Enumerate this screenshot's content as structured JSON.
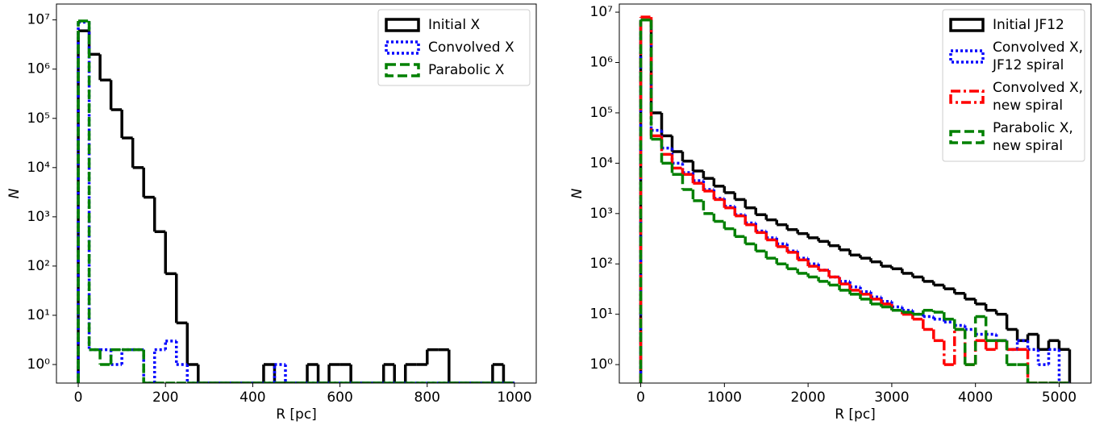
{
  "chart_data": [
    {
      "type": "histogram",
      "xlabel": "R [pc]",
      "ylabel": "N",
      "log_y": true,
      "legend": "upper right",
      "bins": [
        0,
        25,
        50,
        75,
        100,
        125,
        150,
        175,
        200,
        225,
        250,
        275,
        300,
        325,
        350,
        375,
        400,
        425,
        450,
        475,
        500,
        525,
        550,
        575,
        600,
        625,
        650,
        675,
        700,
        725,
        750,
        775,
        800,
        825,
        850,
        875,
        900,
        925,
        950,
        975,
        1000
      ],
      "xlim": [
        -50,
        1050
      ],
      "xticks": [
        0,
        200,
        400,
        600,
        800,
        1000
      ],
      "ylim": [
        0.42,
        21000000
      ],
      "yticks": [
        {
          "value": 1,
          "label": "10⁰"
        },
        {
          "value": 10,
          "label": "10¹"
        },
        {
          "value": 100,
          "label": "10²"
        },
        {
          "value": 1000,
          "label": "10³"
        },
        {
          "value": 10000,
          "label": "10⁴"
        },
        {
          "value": 100000,
          "label": "10⁵"
        },
        {
          "value": 1000000,
          "label": "10⁶"
        },
        {
          "value": 10000000,
          "label": "10⁷"
        }
      ],
      "series": [
        {
          "name": "Initial X",
          "color": "#000000",
          "linestyle": "solid",
          "values": [
            6000000,
            2000000,
            600000,
            150000,
            40000,
            10000,
            2500,
            500,
            70,
            7,
            1,
            0,
            0,
            0,
            0,
            0,
            0,
            1,
            0,
            0,
            0,
            1,
            0,
            1,
            1,
            0,
            0,
            0,
            1,
            0,
            1,
            1,
            2,
            2,
            0,
            0,
            0,
            0,
            1,
            0
          ]
        },
        {
          "name": "Convolved X",
          "color": "#0000ff",
          "linestyle": "dotted",
          "values": [
            9000000,
            2,
            2,
            1,
            2,
            2,
            0,
            2,
            3,
            1,
            0,
            0,
            0,
            0,
            0,
            0,
            0,
            0,
            1,
            0,
            0,
            0,
            0,
            0,
            0,
            0,
            0,
            0,
            0,
            0,
            0,
            0,
            0,
            0,
            0,
            0,
            0,
            0,
            0,
            0
          ]
        },
        {
          "name": "Parabolic X",
          "color": "#008000",
          "linestyle": "dashed",
          "values": [
            9500000,
            2,
            1,
            2,
            2,
            2,
            0,
            0,
            0,
            0,
            0,
            0,
            0,
            0,
            0,
            0,
            0,
            0,
            0,
            0,
            0,
            0,
            0,
            0,
            0,
            0,
            0,
            0,
            0,
            0,
            0,
            0,
            0,
            0,
            0,
            0,
            0,
            0,
            0,
            0
          ]
        }
      ]
    },
    {
      "type": "histogram",
      "xlabel": "R [pc]",
      "ylabel": "N",
      "log_y": true,
      "legend": "upper right",
      "bins": [
        0,
        125,
        250,
        375,
        500,
        625,
        750,
        875,
        1000,
        1125,
        1250,
        1375,
        1500,
        1625,
        1750,
        1875,
        2000,
        2125,
        2250,
        2375,
        2500,
        2625,
        2750,
        2875,
        3000,
        3125,
        3250,
        3375,
        3500,
        3625,
        3750,
        3875,
        4000,
        4125,
        4250,
        4375,
        4500,
        4625,
        4750,
        4875,
        5000,
        5125
      ],
      "xlim": [
        -256,
        5381
      ],
      "xticks": [
        0,
        1000,
        2000,
        3000,
        4000,
        5000
      ],
      "ylim": [
        0.43,
        14500000
      ],
      "yticks": [
        {
          "value": 1,
          "label": "10⁰"
        },
        {
          "value": 10,
          "label": "10¹"
        },
        {
          "value": 100,
          "label": "10²"
        },
        {
          "value": 1000,
          "label": "10³"
        },
        {
          "value": 10000,
          "label": "10⁴"
        },
        {
          "value": 100000,
          "label": "10⁵"
        },
        {
          "value": 1000000,
          "label": "10⁶"
        },
        {
          "value": 10000000,
          "label": "10⁷"
        }
      ],
      "series": [
        {
          "name": "Initial JF12",
          "color": "#000000",
          "linestyle": "solid",
          "values": [
            7000000,
            100000,
            35000,
            17000,
            11000,
            7000,
            5000,
            3500,
            2600,
            1900,
            1300,
            950,
            750,
            600,
            480,
            400,
            330,
            280,
            230,
            190,
            150,
            130,
            110,
            90,
            80,
            65,
            55,
            45,
            38,
            32,
            26,
            20,
            16,
            12,
            10,
            5,
            3,
            4,
            2,
            3,
            2
          ]
        },
        {
          "name": "Convolved X,\nJF12 spiral",
          "color": "#0000ff",
          "linestyle": "dotted",
          "values": [
            7000000,
            45000,
            20000,
            10000,
            6500,
            4500,
            3000,
            2000,
            1400,
            950,
            650,
            450,
            330,
            250,
            180,
            130,
            100,
            75,
            55,
            45,
            35,
            28,
            22,
            18,
            14,
            12,
            10,
            9,
            8,
            7,
            6,
            5,
            4,
            4,
            3,
            2,
            3,
            2,
            1,
            2,
            0
          ]
        },
        {
          "name": "Convolved X,\nnew spiral",
          "color": "#ff0000",
          "linestyle": "dashdot",
          "values": [
            8000000,
            35000,
            15000,
            8000,
            6000,
            4000,
            2800,
            1900,
            1300,
            900,
            600,
            420,
            300,
            220,
            170,
            120,
            90,
            75,
            55,
            40,
            30,
            25,
            20,
            16,
            12,
            10,
            8,
            5,
            3,
            1,
            5,
            1,
            3,
            2,
            3,
            2,
            2,
            0,
            0,
            0,
            0
          ]
        },
        {
          "name": "Parabolic X,\nnew spiral",
          "color": "#008000",
          "linestyle": "dashed",
          "values": [
            7000000,
            30000,
            10000,
            6000,
            3000,
            1800,
            1000,
            700,
            500,
            350,
            250,
            180,
            130,
            100,
            80,
            65,
            55,
            45,
            38,
            30,
            25,
            20,
            16,
            14,
            12,
            11,
            10,
            12,
            11,
            8,
            5,
            1,
            9,
            3,
            3,
            1,
            1,
            0,
            0,
            0,
            0
          ]
        }
      ]
    }
  ]
}
